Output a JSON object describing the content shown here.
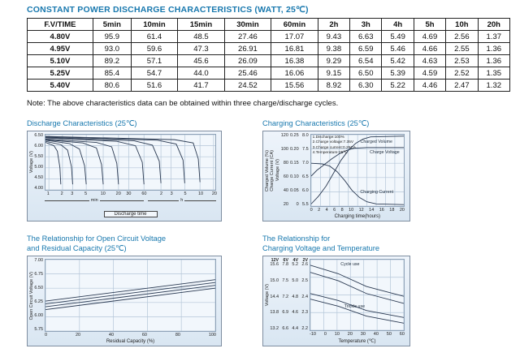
{
  "page": {
    "title": "CONSTANT POWER DISCHARGE CHARACTERISTICS (WATT, 25℃)",
    "note": "Note: The above characteristics data can be obtained within three charge/discharge cycles.",
    "accent_color": "#1878ae"
  },
  "table": {
    "headers": [
      "F.V/TIME",
      "5min",
      "10min",
      "15min",
      "30min",
      "60min",
      "2h",
      "3h",
      "4h",
      "5h",
      "10h",
      "20h"
    ],
    "rows": [
      [
        "4.80V",
        "95.9",
        "61.4",
        "48.5",
        "27.46",
        "17.07",
        "9.43",
        "6.63",
        "5.49",
        "4.69",
        "2.56",
        "1.37"
      ],
      [
        "4.95V",
        "93.0",
        "59.6",
        "47.3",
        "26.91",
        "16.81",
        "9.38",
        "6.59",
        "5.46",
        "4.66",
        "2.55",
        "1.36"
      ],
      [
        "5.10V",
        "89.2",
        "57.1",
        "45.6",
        "26.09",
        "16.38",
        "9.29",
        "6.54",
        "5.42",
        "4.63",
        "2.53",
        "1.36"
      ],
      [
        "5.25V",
        "85.4",
        "54.7",
        "44.0",
        "25.46",
        "16.06",
        "9.15",
        "6.50",
        "5.39",
        "4.59",
        "2.52",
        "1.35"
      ],
      [
        "5.40V",
        "80.6",
        "51.6",
        "41.7",
        "24.52",
        "15.56",
        "8.92",
        "6.30",
        "5.22",
        "4.46",
        "2.47",
        "1.32"
      ]
    ]
  },
  "chart_data": [
    {
      "key": "discharge",
      "type": "line",
      "coords": "percent-of-plot-area",
      "title_lines": [
        "Discharge Characteristics (25℃)"
      ],
      "ylabel": "Voltage (V)",
      "yticks": [
        "6.50",
        "6.00",
        "5.50",
        "5.00",
        "4.50",
        "4.00"
      ],
      "xticks": [
        "1",
        "2",
        "3",
        "5",
        "10",
        "20",
        "30",
        "60",
        "2",
        "3",
        "5",
        "10",
        "20"
      ],
      "xpos": [
        2,
        10,
        16,
        24,
        34,
        43,
        49,
        58,
        68,
        74,
        82,
        91,
        99
      ],
      "sub_axis": {
        "left": "min",
        "right": "h"
      },
      "xlabel_box": "Discharge time",
      "series": [
        {
          "points": [
            [
              0,
              86
            ],
            [
              5,
              80
            ],
            [
              7,
              70
            ],
            [
              8.5,
              40
            ],
            [
              9,
              10
            ]
          ]
        },
        {
          "points": [
            [
              0,
              88
            ],
            [
              9,
              82
            ],
            [
              13,
              72
            ],
            [
              15.3,
              42
            ],
            [
              16,
              10
            ]
          ]
        },
        {
          "points": [
            [
              0,
              90
            ],
            [
              14,
              84
            ],
            [
              20,
              74
            ],
            [
              23,
              44
            ],
            [
              24,
              10
            ]
          ]
        },
        {
          "points": [
            [
              0,
              91
            ],
            [
              22,
              85
            ],
            [
              30,
              76
            ],
            [
              33,
              46
            ],
            [
              34,
              10
            ]
          ]
        },
        {
          "points": [
            [
              0,
              92
            ],
            [
              30,
              86
            ],
            [
              39,
              78
            ],
            [
              42,
              48
            ],
            [
              43,
              10
            ]
          ]
        },
        {
          "points": [
            [
              0,
              94
            ],
            [
              42,
              88
            ],
            [
              53,
              80
            ],
            [
              57,
              50
            ],
            [
              58,
              10
            ]
          ]
        },
        {
          "points": [
            [
              0,
              95
            ],
            [
              52,
              89
            ],
            [
              63,
              81
            ],
            [
              67,
              52
            ],
            [
              68,
              12
            ]
          ]
        },
        {
          "points": [
            [
              0,
              96
            ],
            [
              66,
              90
            ],
            [
              77,
              83
            ],
            [
              81,
              54
            ],
            [
              82,
              12
            ]
          ]
        },
        {
          "points": [
            [
              0,
              97
            ],
            [
              76,
              91
            ],
            [
              87,
              85
            ],
            [
              90,
              56
            ],
            [
              91,
              14
            ]
          ]
        }
      ]
    },
    {
      "key": "charging",
      "type": "line",
      "coords": "percent-of-plot-area",
      "title_lines": [
        "Charging Characteristics (25℃)"
      ],
      "ylabels": [
        "Charged Volume (%)",
        "Charge Current (CA)",
        "Voltage (V)"
      ],
      "ycols": [
        {
          "values": [
            "120",
            "100",
            "80",
            "60",
            "40",
            "20"
          ]
        },
        {
          "values": [
            "0.25",
            "0.20",
            "0.15",
            "0.10",
            "0.05",
            "0"
          ]
        },
        {
          "values": [
            "8.0",
            "7.5",
            "7.0",
            "6.5",
            "6.0",
            "5.5"
          ]
        }
      ],
      "xticks": [
        "0",
        "2",
        "4",
        "6",
        "8",
        "10",
        "12",
        "14",
        "16",
        "18",
        "20"
      ],
      "xlabel": "Charging time(hours)",
      "legend": [
        "1.Discharge:100%",
        "2.Charge voltage:7.35V",
        "3.Charge current:0.25CA",
        "4.Temperature:25℃"
      ],
      "series": [
        {
          "name": "Charged Volume",
          "points": [
            [
              0,
              3
            ],
            [
              8,
              14
            ],
            [
              16,
              28
            ],
            [
              24,
              46
            ],
            [
              32,
              64
            ],
            [
              40,
              78
            ],
            [
              48,
              88
            ],
            [
              56,
              94
            ],
            [
              64,
              97
            ],
            [
              100,
              98
            ]
          ],
          "label_at": [
            56,
            86
          ]
        },
        {
          "name": "Charge Voltage",
          "points": [
            [
              0,
              42
            ],
            [
              6,
              50
            ],
            [
              14,
              58
            ],
            [
              22,
              66
            ],
            [
              30,
              73
            ],
            [
              38,
              78
            ],
            [
              46,
              81
            ],
            [
              60,
              82
            ],
            [
              100,
              82
            ]
          ],
          "label_at": [
            66,
            72
          ]
        },
        {
          "name": "Charging Current",
          "points": [
            [
              0,
              60
            ],
            [
              12,
              59
            ],
            [
              20,
              56
            ],
            [
              28,
              48
            ],
            [
              36,
              36
            ],
            [
              44,
              22
            ],
            [
              52,
              12
            ],
            [
              60,
              6
            ],
            [
              70,
              3
            ],
            [
              100,
              2
            ]
          ],
          "label_at": [
            56,
            16
          ]
        }
      ]
    },
    {
      "key": "ocv",
      "type": "line",
      "coords": "percent-of-plot-area",
      "title_lines": [
        "The Relationship for Open Circuit Voltage",
        "and Residual Capacity (25℃)"
      ],
      "ylabel": "Open Circuit Voltage (V)",
      "yticks": [
        "7.00",
        "6.75",
        "6.50",
        "6.25",
        "6.00",
        "5.75"
      ],
      "xticks": [
        "0",
        "20",
        "40",
        "60",
        "80",
        "100"
      ],
      "xlabel": "Residual Capacity (%)",
      "series": [
        {
          "points": [
            [
              0,
              30
            ],
            [
              100,
              60
            ]
          ]
        },
        {
          "points": [
            [
              0,
              34
            ],
            [
              100,
              64
            ]
          ]
        },
        {
          "points": [
            [
              0,
              38
            ],
            [
              100,
              68
            ]
          ]
        },
        {
          "points": [
            [
              0,
              42
            ],
            [
              100,
              72
            ]
          ]
        }
      ]
    },
    {
      "key": "temp",
      "type": "line",
      "coords": "percent-of-plot-area",
      "title_lines": [
        "The Relationship for",
        "Charging Voltage and Temperature"
      ],
      "ylabel": "Voltage (V)",
      "ycols": [
        {
          "header": "12V",
          "values": [
            "15.6",
            "15.0",
            "14.4",
            "13.8",
            "13.2"
          ]
        },
        {
          "header": "6V",
          "values": [
            "7.8",
            "7.5",
            "7.2",
            "6.9",
            "6.6"
          ]
        },
        {
          "header": "4V",
          "values": [
            "5.2",
            "5.0",
            "4.8",
            "4.6",
            "4.4"
          ]
        },
        {
          "header": "2V",
          "values": [
            "2.6",
            "2.5",
            "2.4",
            "2.3",
            "2.2"
          ]
        }
      ],
      "xticks": [
        "-10",
        "0",
        "10",
        "20",
        "30",
        "40",
        "50",
        "60"
      ],
      "xlabel": "Temperature (℃)",
      "series": [
        {
          "name": "Cycle use",
          "points": [
            [
              0,
              92
            ],
            [
              30,
              80
            ],
            [
              60,
              62
            ],
            [
              100,
              48
            ]
          ],
          "label_at": [
            34,
            90
          ]
        },
        {
          "points": [
            [
              0,
              82
            ],
            [
              30,
              70
            ],
            [
              60,
              52
            ],
            [
              100,
              38
            ]
          ]
        },
        {
          "name": "Trickle use",
          "points": [
            [
              0,
              52
            ],
            [
              30,
              42
            ],
            [
              60,
              28
            ],
            [
              100,
              18
            ]
          ],
          "label_at": [
            38,
            30
          ]
        },
        {
          "points": [
            [
              0,
              44
            ],
            [
              30,
              34
            ],
            [
              60,
              20
            ],
            [
              100,
              10
            ]
          ]
        }
      ]
    }
  ]
}
